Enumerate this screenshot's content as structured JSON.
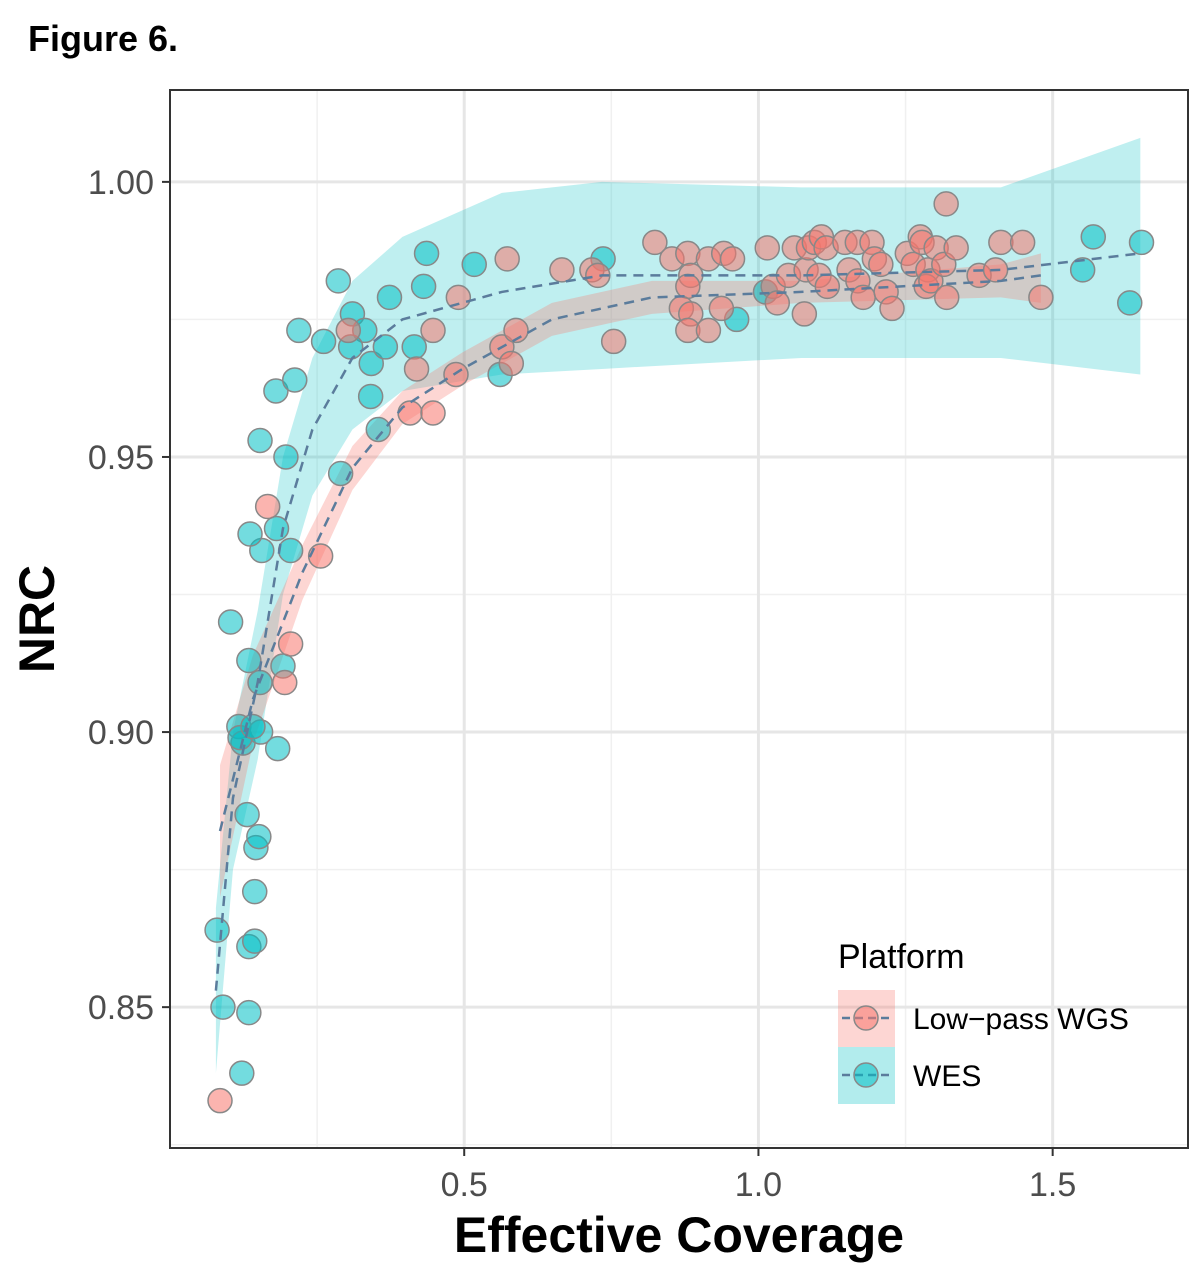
{
  "figure_label": "Figure 6.",
  "chart_data": {
    "type": "scatter",
    "xlabel": "Effective Coverage",
    "ylabel": "NRC",
    "xlim": [
      0,
      1.73
    ],
    "ylim": [
      0.8244,
      1.0167
    ],
    "xticks": [
      0.5,
      1.0,
      1.5
    ],
    "xtick_labels": [
      "0.5",
      "1.0",
      "1.5"
    ],
    "yticks": [
      0.85,
      0.9,
      0.95,
      1.0
    ],
    "ytick_labels": [
      "0.85",
      "0.90",
      "0.95",
      "1.00"
    ],
    "grid": true,
    "legend": {
      "title": "Platform",
      "placement": "bottom-right"
    },
    "series": [
      {
        "name": "Low−pass WGS",
        "color": "#F8766D",
        "points": [
          [
            0.085,
            0.833
          ],
          [
            0.166,
            0.941
          ],
          [
            0.195,
            0.909
          ],
          [
            0.205,
            0.916
          ],
          [
            0.256,
            0.932
          ],
          [
            0.303,
            0.973
          ],
          [
            0.408,
            0.958
          ],
          [
            0.447,
            0.958
          ],
          [
            0.419,
            0.966
          ],
          [
            0.447,
            0.973
          ],
          [
            0.49,
            0.979
          ],
          [
            0.486,
            0.965
          ],
          [
            0.564,
            0.97
          ],
          [
            0.58,
            0.967
          ],
          [
            0.588,
            0.973
          ],
          [
            0.573,
            0.986
          ],
          [
            0.666,
            0.984
          ],
          [
            0.717,
            0.984
          ],
          [
            0.727,
            0.983
          ],
          [
            0.754,
            0.971
          ],
          [
            0.824,
            0.989
          ],
          [
            0.853,
            0.986
          ],
          [
            0.88,
            0.987
          ],
          [
            0.885,
            0.983
          ],
          [
            0.88,
            0.981
          ],
          [
            0.869,
            0.977
          ],
          [
            0.885,
            0.976
          ],
          [
            0.88,
            0.973
          ],
          [
            0.915,
            0.973
          ],
          [
            0.915,
            0.986
          ],
          [
            0.941,
            0.987
          ],
          [
            0.956,
            0.986
          ],
          [
            0.937,
            0.977
          ],
          [
            1.015,
            0.988
          ],
          [
            1.025,
            0.981
          ],
          [
            1.032,
            0.978
          ],
          [
            1.051,
            0.983
          ],
          [
            1.081,
            0.984
          ],
          [
            1.078,
            0.976
          ],
          [
            1.061,
            0.988
          ],
          [
            1.085,
            0.988
          ],
          [
            1.095,
            0.989
          ],
          [
            1.107,
            0.99
          ],
          [
            1.115,
            0.988
          ],
          [
            1.103,
            0.983
          ],
          [
            1.117,
            0.981
          ],
          [
            1.147,
            0.989
          ],
          [
            1.154,
            0.984
          ],
          [
            1.168,
            0.989
          ],
          [
            1.169,
            0.982
          ],
          [
            1.178,
            0.979
          ],
          [
            1.193,
            0.989
          ],
          [
            1.197,
            0.986
          ],
          [
            1.208,
            0.985
          ],
          [
            1.217,
            0.98
          ],
          [
            1.227,
            0.977
          ],
          [
            1.253,
            0.987
          ],
          [
            1.263,
            0.985
          ],
          [
            1.275,
            0.99
          ],
          [
            1.278,
            0.989
          ],
          [
            1.288,
            0.984
          ],
          [
            1.285,
            0.981
          ],
          [
            1.293,
            0.982
          ],
          [
            1.302,
            0.988
          ],
          [
            1.319,
            0.996
          ],
          [
            1.315,
            0.985
          ],
          [
            1.32,
            0.979
          ],
          [
            1.336,
            0.988
          ],
          [
            1.375,
            0.983
          ],
          [
            1.403,
            0.984
          ],
          [
            1.412,
            0.989
          ],
          [
            1.449,
            0.989
          ],
          [
            1.48,
            0.979
          ]
        ],
        "fit": {
          "x": [
            0.085,
            0.141,
            0.225,
            0.31,
            0.395,
            0.497,
            0.649,
            0.819,
            1.073,
            1.412,
            1.48
          ],
          "y": [
            0.882,
            0.906,
            0.929,
            0.948,
            0.959,
            0.966,
            0.975,
            0.979,
            0.98,
            0.982,
            0.983
          ],
          "lo": [
            0.87,
            0.898,
            0.924,
            0.944,
            0.956,
            0.963,
            0.972,
            0.976,
            0.978,
            0.979,
            0.978
          ],
          "hi": [
            0.894,
            0.914,
            0.934,
            0.952,
            0.962,
            0.969,
            0.978,
            0.982,
            0.982,
            0.985,
            0.987
          ]
        }
      },
      {
        "name": "WES",
        "color": "#00BFC4",
        "points": [
          [
            0.08,
            0.864
          ],
          [
            0.09,
            0.85
          ],
          [
            0.122,
            0.838
          ],
          [
            0.134,
            0.849
          ],
          [
            0.134,
            0.861
          ],
          [
            0.144,
            0.862
          ],
          [
            0.144,
            0.871
          ],
          [
            0.146,
            0.879
          ],
          [
            0.151,
            0.881
          ],
          [
            0.131,
            0.885
          ],
          [
            0.103,
            0.92
          ],
          [
            0.117,
            0.901
          ],
          [
            0.124,
            0.898
          ],
          [
            0.119,
            0.899
          ],
          [
            0.134,
            0.913
          ],
          [
            0.153,
            0.909
          ],
          [
            0.154,
            0.9
          ],
          [
            0.141,
            0.901
          ],
          [
            0.156,
            0.933
          ],
          [
            0.153,
            0.953
          ],
          [
            0.136,
            0.936
          ],
          [
            0.181,
            0.937
          ],
          [
            0.205,
            0.933
          ],
          [
            0.197,
            0.95
          ],
          [
            0.183,
            0.897
          ],
          [
            0.192,
            0.912
          ],
          [
            0.18,
            0.962
          ],
          [
            0.212,
            0.964
          ],
          [
            0.219,
            0.973
          ],
          [
            0.261,
            0.971
          ],
          [
            0.286,
            0.982
          ],
          [
            0.31,
            0.976
          ],
          [
            0.331,
            0.973
          ],
          [
            0.307,
            0.97
          ],
          [
            0.342,
            0.967
          ],
          [
            0.341,
            0.961
          ],
          [
            0.354,
            0.955
          ],
          [
            0.366,
            0.97
          ],
          [
            0.373,
            0.979
          ],
          [
            0.29,
            0.947
          ],
          [
            0.415,
            0.97
          ],
          [
            0.431,
            0.981
          ],
          [
            0.436,
            0.987
          ],
          [
            0.517,
            0.985
          ],
          [
            0.561,
            0.965
          ],
          [
            0.736,
            0.986
          ],
          [
            1.012,
            0.98
          ],
          [
            0.963,
            0.975
          ],
          [
            1.551,
            0.984
          ],
          [
            1.569,
            0.99
          ],
          [
            1.631,
            0.978
          ],
          [
            1.651,
            0.989
          ]
        ],
        "fit": {
          "x": [
            0.078,
            0.107,
            0.149,
            0.192,
            0.242,
            0.31,
            0.395,
            0.564,
            0.734,
            1.073,
            1.412,
            1.649
          ],
          "y": [
            0.853,
            0.888,
            0.909,
            0.937,
            0.955,
            0.968,
            0.975,
            0.98,
            0.983,
            0.983,
            0.984,
            0.987
          ],
          "lo": [
            0.838,
            0.875,
            0.895,
            0.925,
            0.943,
            0.955,
            0.962,
            0.965,
            0.966,
            0.968,
            0.968,
            0.965
          ],
          "hi": [
            0.868,
            0.9,
            0.922,
            0.95,
            0.968,
            0.982,
            0.99,
            0.998,
            1.0,
            0.999,
            0.999,
            1.008
          ]
        }
      }
    ]
  }
}
